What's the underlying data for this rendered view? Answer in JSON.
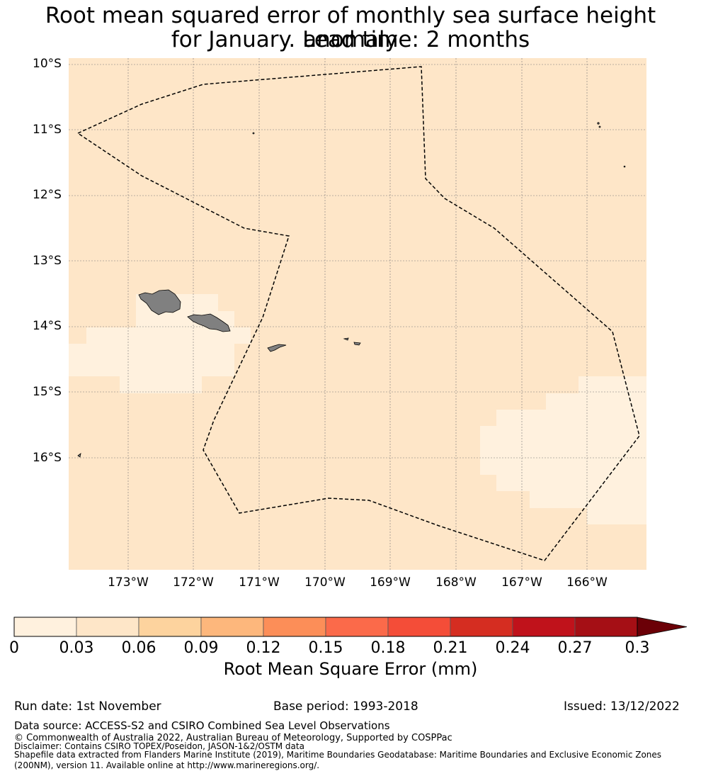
{
  "title": {
    "line1": "Root mean squared error of monthly sea surface height anomaly",
    "line2": "for January. Lead time: 2 months"
  },
  "map": {
    "lat_labels": [
      "10°S",
      "11°S",
      "12°S",
      "13°S",
      "14°S",
      "15°S",
      "16°S"
    ],
    "lon_labels": [
      "173°W",
      "172°W",
      "171°W",
      "170°W",
      "169°W",
      "168°W",
      "167°W",
      "166°W"
    ],
    "base_color": "#fee6c8",
    "light_color": "#fff1de",
    "land_color": "#808080",
    "eez_line_color": "#000000"
  },
  "colorbar": {
    "ticks": [
      "0",
      "0.03",
      "0.06",
      "0.09",
      "0.12",
      "0.15",
      "0.18",
      "0.21",
      "0.24",
      "0.27",
      "0.3"
    ],
    "colors": [
      "#fff1de",
      "#fee6c8",
      "#fdd39e",
      "#fdb77c",
      "#fc8e58",
      "#fb6a4a",
      "#f44d38",
      "#d52d21",
      "#c0121b",
      "#a50f15"
    ],
    "extend_color": "#6b0007",
    "label": "Root Mean Square Error (mm)"
  },
  "footer": {
    "run_date": "Run date: 1st November",
    "base_period": "Base period: 1993-2018",
    "issued": "Issued: 13/12/2022",
    "data_source": "Data source: ACCESS-S2 and CSIRO Combined Sea Level Observations",
    "copyright": "© Commonwealth of Australia 2022, Australian Bureau of Meteorology, Supported by COSPPac",
    "disclaimer": "Disclaimer: Contains CSIRO TOPEX/Poseidon, JASON-1&2/OSTM data",
    "shapefile1": "Shapefile data extracted from Flanders Marine Institute (2019), Maritime Boundaries Geodatabase: Maritime Boundaries and Exclusive Economic Zones",
    "shapefile2": "(200NM), version 11. Available online at http://www.marineregions.org/."
  }
}
